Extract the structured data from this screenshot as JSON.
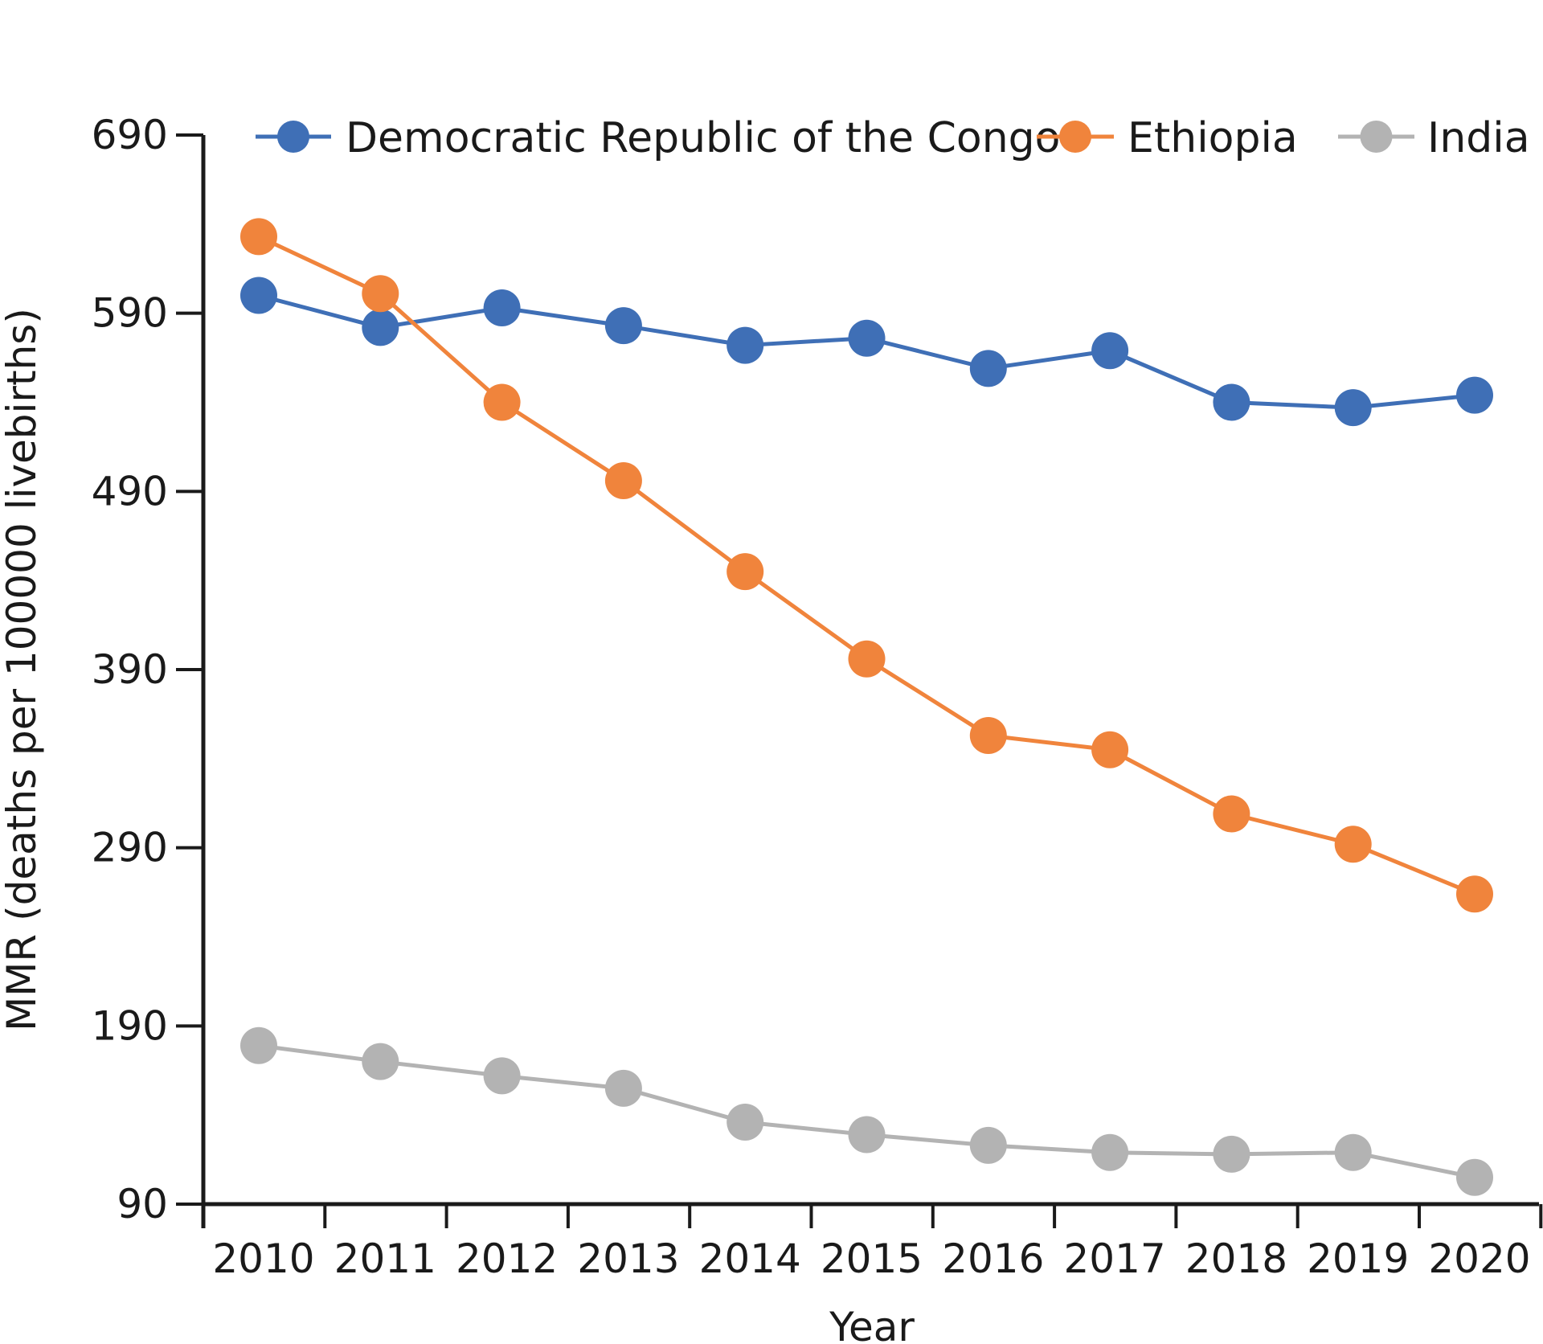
{
  "chart_data": {
    "type": "line",
    "title": "",
    "xlabel": "Year",
    "ylabel": "MMR (deaths per 100000 livebirths)",
    "ylim": [
      90,
      690
    ],
    "yticks": [
      90,
      190,
      290,
      390,
      490,
      590,
      690
    ],
    "x": [
      2010,
      2011,
      2012,
      2013,
      2014,
      2015,
      2016,
      2017,
      2018,
      2019,
      2020
    ],
    "xtick_labels": [
      "2010",
      "2011",
      "2012",
      "2013",
      "2014",
      "2015",
      "2016",
      "2017",
      "2018",
      "2019",
      "2020"
    ],
    "ytick_labels": [
      "90",
      "190",
      "290",
      "390",
      "490",
      "590",
      "690"
    ],
    "legend_position": "top",
    "series": [
      {
        "name": "Democratic Republic of the Congo",
        "color": "#3f6fb6",
        "values": [
          600,
          582,
          593,
          583,
          572,
          576,
          559,
          569,
          540,
          537,
          544
        ]
      },
      {
        "name": "Ethiopia",
        "color": "#f0843c",
        "values": [
          633,
          601,
          540,
          496,
          445,
          396,
          353,
          345,
          309,
          292,
          264
        ]
      },
      {
        "name": "India",
        "color": "#b3b3b3",
        "values": [
          179,
          170,
          162,
          155,
          136,
          129,
          123,
          119,
          118,
          119,
          105
        ]
      }
    ]
  }
}
